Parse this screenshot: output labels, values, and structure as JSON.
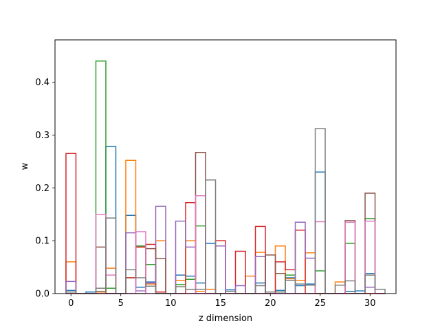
{
  "chart_data": {
    "type": "step",
    "xlabel": "z dimension",
    "ylabel": "w",
    "xlim": [
      -1.6,
      32.6
    ],
    "ylim": [
      0,
      0.48
    ],
    "xticks": [
      0,
      5,
      10,
      15,
      20,
      25,
      30
    ],
    "yticks": [
      0.0,
      0.1,
      0.2,
      0.3,
      0.4
    ],
    "grid": false,
    "legend": "none",
    "bin_width": 1,
    "colors": [
      "#1f77b4",
      "#ff7f0e",
      "#2ca02c",
      "#d62728",
      "#9467bd",
      "#8c564b",
      "#e377c2",
      "#7f7f7f"
    ],
    "series": [
      {
        "values": [
          0.006,
          0,
          0.003,
          0.004,
          0.278,
          0,
          0.148,
          0.012,
          0.022,
          0,
          0,
          0.035,
          0.033,
          0.02,
          0.095,
          0,
          0.007,
          0,
          0,
          0.02,
          0,
          0.006,
          0.03,
          0.015,
          0.018,
          0.23,
          0,
          0,
          0.004,
          0.005,
          0.038,
          0
        ]
      },
      {
        "values": [
          0.06,
          0,
          0,
          0.003,
          0.048,
          0,
          0.252,
          0.088,
          0.018,
          0.1,
          0,
          0.025,
          0.1,
          0.004,
          0.008,
          0,
          0,
          0,
          0.033,
          0.078,
          0,
          0.09,
          0.028,
          0.025,
          0.077,
          0,
          0,
          0.022,
          0,
          0,
          0,
          0
        ]
      },
      {
        "values": [
          0,
          0,
          0,
          0.44,
          0.01,
          0,
          0.03,
          0.09,
          0.055,
          0,
          0,
          0.017,
          0.027,
          0.128,
          0,
          0,
          0,
          0,
          0,
          0,
          0,
          0,
          0.035,
          0,
          0,
          0.043,
          0,
          0,
          0.095,
          0,
          0.142,
          0
        ]
      },
      {
        "values": [
          0.265,
          0,
          0,
          0,
          0,
          0,
          0.03,
          0.088,
          0.093,
          0.003,
          0,
          0,
          0.172,
          0,
          0,
          0.1,
          0,
          0.08,
          0,
          0.127,
          0,
          0.06,
          0.045,
          0.12,
          0,
          0,
          0,
          0,
          0,
          0,
          0,
          0
        ]
      },
      {
        "values": [
          0.023,
          0,
          0,
          0,
          0,
          0,
          0.115,
          0.005,
          0.02,
          0.165,
          0,
          0.137,
          0.088,
          0,
          0,
          0.09,
          0,
          0.015,
          0,
          0.07,
          0,
          0,
          0,
          0.135,
          0.067,
          0,
          0,
          0,
          0,
          0,
          0.012,
          0
        ]
      },
      {
        "values": [
          0,
          0,
          0,
          0.088,
          0,
          0,
          0,
          0,
          0.085,
          0.066,
          0,
          0,
          0,
          0.267,
          0,
          0,
          0,
          0,
          0,
          0,
          0.073,
          0.038,
          0,
          0,
          0,
          0,
          0,
          0,
          0.138,
          0,
          0.19,
          0
        ]
      },
      {
        "values": [
          0,
          0,
          0,
          0.15,
          0.035,
          0,
          0,
          0.117,
          0,
          0,
          0,
          0,
          0,
          0.185,
          0,
          0,
          0,
          0,
          0,
          0,
          0,
          0,
          0,
          0,
          0,
          0.136,
          0,
          0,
          0.135,
          0,
          0.137,
          0
        ]
      },
      {
        "values": [
          0.003,
          0,
          0,
          0.01,
          0.143,
          0,
          0.045,
          0.03,
          0.014,
          0,
          0,
          0.013,
          0.008,
          0.008,
          0.215,
          0,
          0.004,
          0,
          0,
          0.015,
          0.003,
          0.003,
          0.025,
          0.018,
          0.016,
          0.312,
          0,
          0.016,
          0.024,
          0,
          0.035,
          0.008
        ]
      }
    ]
  }
}
